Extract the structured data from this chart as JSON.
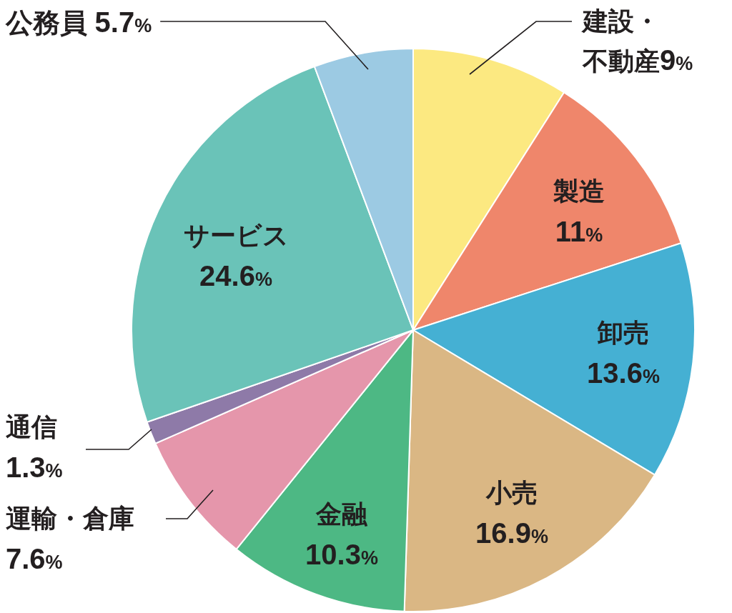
{
  "chart_data": {
    "type": "pie",
    "categories": [
      "建設・不動産",
      "製造",
      "卸売",
      "小売",
      "金融",
      "運輸・倉庫",
      "通信",
      "サービス",
      "公務員"
    ],
    "values": [
      9,
      11,
      13.6,
      16.9,
      10.3,
      7.6,
      1.3,
      24.6,
      5.7
    ],
    "value_labels": [
      "9%",
      "11%",
      "13.6%",
      "16.9%",
      "10.3%",
      "7.6%",
      "1.3%",
      "24.6%",
      "5.7%"
    ],
    "colors": [
      "#fce981",
      "#ef866b",
      "#45b0d3",
      "#dab784",
      "#4db884",
      "#e596ab",
      "#8e7aa8",
      "#6ac3b8",
      "#9ccae3"
    ]
  }
}
